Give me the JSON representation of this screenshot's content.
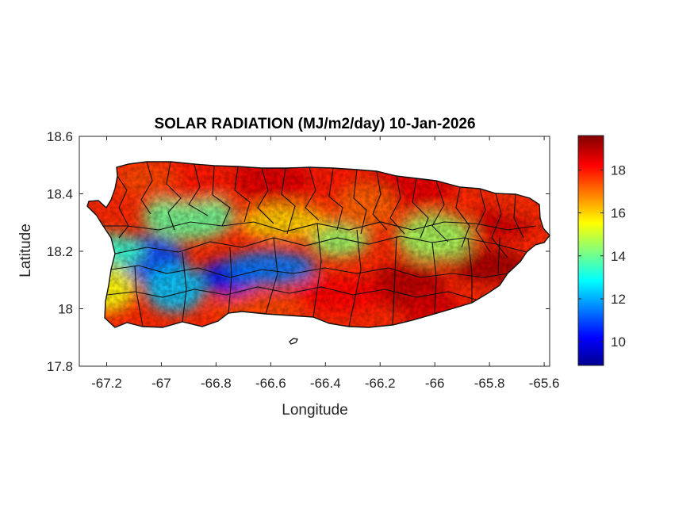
{
  "chart_data": {
    "type": "heatmap",
    "title": "SOLAR RADIATION (MJ/m2/day) 10-Jan-2026",
    "xlabel": "Longitude",
    "ylabel": "Latitude",
    "xlim": [
      -67.3,
      -65.58
    ],
    "ylim": [
      17.8,
      18.6
    ],
    "x_ticks": [
      -67.2,
      -67,
      -66.8,
      -66.6,
      -66.4,
      -66.2,
      -66,
      -65.8,
      -65.6
    ],
    "x_tick_labels": [
      "-67.2",
      "-67",
      "-66.8",
      "-66.6",
      "-66.4",
      "-66.2",
      "-66",
      "-65.8",
      "-65.6"
    ],
    "y_ticks": [
      17.8,
      18,
      18.2,
      18.4,
      18.6
    ],
    "y_tick_labels": [
      "17.8",
      "18",
      "18.2",
      "18.4",
      "18.6"
    ],
    "colorbar": {
      "range": [
        8.9,
        19.6
      ],
      "ticks": [
        10,
        12,
        14,
        16,
        18
      ],
      "tick_labels": [
        "10",
        "12",
        "14",
        "16",
        "18"
      ],
      "colormap": "jet"
    },
    "field_regions": [
      {
        "lon": -66.75,
        "lat": 18.11,
        "value": 10.2
      },
      {
        "lon": -67.05,
        "lat": 18.17,
        "value": 11.0
      },
      {
        "lon": -66.6,
        "lat": 18.14,
        "value": 11.5
      },
      {
        "lon": -66.95,
        "lat": 18.07,
        "value": 12.3
      },
      {
        "lon": -67.2,
        "lat": 18.2,
        "value": 13.5
      },
      {
        "lon": -66.9,
        "lat": 18.32,
        "value": 14.0
      },
      {
        "lon": -66.35,
        "lat": 18.24,
        "value": 14.5
      },
      {
        "lon": -66.0,
        "lat": 18.25,
        "value": 14.6
      },
      {
        "lon": -66.55,
        "lat": 18.3,
        "value": 16.0
      },
      {
        "lon": -67.2,
        "lat": 18.07,
        "value": 15.5
      },
      {
        "lon": -66.4,
        "lat": 18.45,
        "value": 18.0
      },
      {
        "lon": -66.1,
        "lat": 18.42,
        "value": 18.5
      },
      {
        "lon": -65.75,
        "lat": 18.3,
        "value": 18.8
      },
      {
        "lon": -66.1,
        "lat": 18.08,
        "value": 19.0
      },
      {
        "lon": -66.35,
        "lat": 18.05,
        "value": 18.2
      },
      {
        "lon": -66.0,
        "lat": 17.98,
        "value": 18.6
      },
      {
        "lon": -65.8,
        "lat": 18.15,
        "value": 19.2
      },
      {
        "lon": -66.9,
        "lat": 18.45,
        "value": 18.0
      },
      {
        "lon": -67.05,
        "lat": 18.45,
        "value": 17.5
      },
      {
        "lon": -66.6,
        "lat": 18.45,
        "value": 18.6
      },
      {
        "lon": -66.65,
        "lat": 18.0,
        "value": 17.5
      },
      {
        "lon": -66.25,
        "lat": 18.35,
        "value": 17.2
      },
      {
        "lon": -65.65,
        "lat": 18.38,
        "value": 17.8
      }
    ],
    "grid": false,
    "legend": "colorbar-right"
  }
}
